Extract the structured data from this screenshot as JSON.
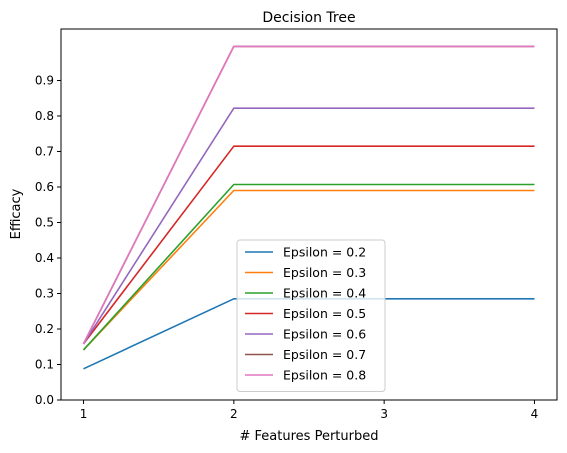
{
  "chart_data": {
    "type": "line",
    "title": "Decision Tree",
    "xlabel": "# Features Perturbed",
    "ylabel": "Efficacy",
    "x": [
      1,
      2,
      3,
      4
    ],
    "xticks": [
      "1",
      "2",
      "3",
      "4"
    ],
    "yticks": [
      "0.0",
      "0.1",
      "0.2",
      "0.3",
      "0.4",
      "0.5",
      "0.6",
      "0.7",
      "0.8",
      "0.9"
    ],
    "xlim": [
      0.85,
      4.15
    ],
    "ylim": [
      0.0,
      1.045
    ],
    "grid": false,
    "legend_position": "lower center",
    "series": [
      {
        "name": "Epsilon = 0.2",
        "color": "#1f77b4",
        "values": [
          0.088,
          0.285,
          0.285,
          0.285
        ]
      },
      {
        "name": "Epsilon = 0.3",
        "color": "#ff7f0e",
        "values": [
          0.141,
          0.59,
          0.59,
          0.59
        ]
      },
      {
        "name": "Epsilon = 0.4",
        "color": "#2ca02c",
        "values": [
          0.141,
          0.607,
          0.607,
          0.607
        ]
      },
      {
        "name": "Epsilon = 0.5",
        "color": "#d62728",
        "values": [
          0.158,
          0.715,
          0.715,
          0.715
        ]
      },
      {
        "name": "Epsilon = 0.6",
        "color": "#9467bd",
        "values": [
          0.158,
          0.822,
          0.822,
          0.822
        ]
      },
      {
        "name": "Epsilon = 0.7",
        "color": "#8c564b",
        "values": [
          0.158,
          0.996,
          0.996,
          0.996
        ]
      },
      {
        "name": "Epsilon = 0.8",
        "color": "#e377c2",
        "values": [
          0.158,
          0.996,
          0.996,
          0.996
        ]
      }
    ]
  }
}
